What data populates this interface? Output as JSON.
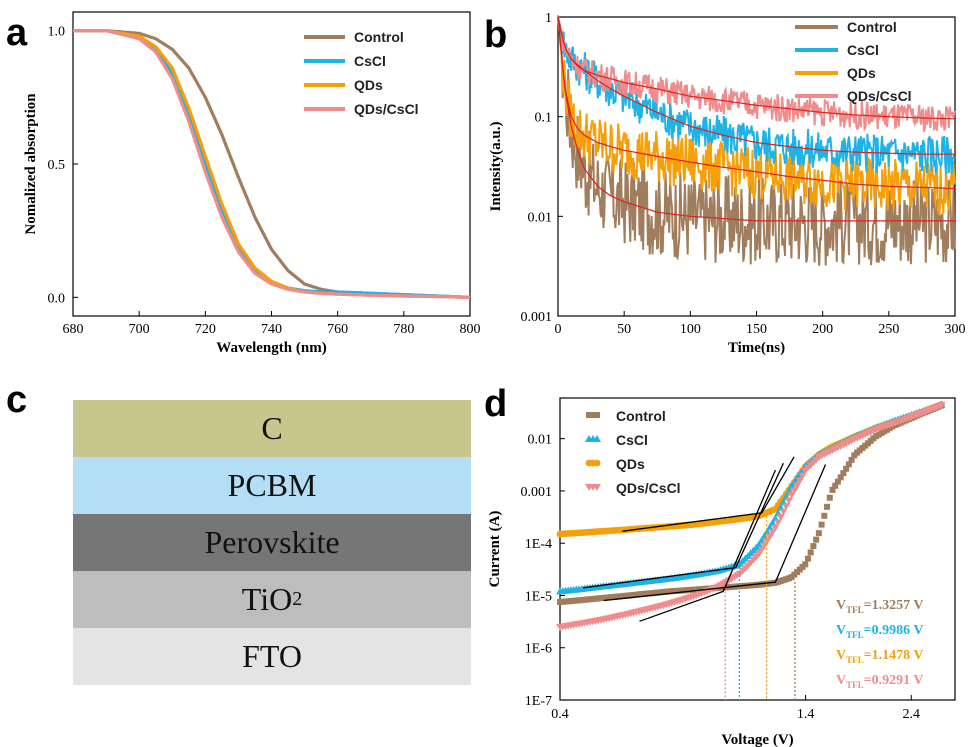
{
  "panel_labels": {
    "a": "a",
    "b": "b",
    "c": "c",
    "d": "d"
  },
  "colors": {
    "Control": "#a07d5c",
    "CsCl": "#1eb3e6",
    "QDs": "#f5a00a",
    "QDs/CsCl": "#f08c8c",
    "fit": "#e02020"
  },
  "chart_data": [
    {
      "panel": "a",
      "type": "line",
      "xlabel": "Wavelength (nm)",
      "ylabel": "Nomalized absorption",
      "xlim": [
        680,
        800
      ],
      "ylim": [
        -0.07,
        1.07
      ],
      "xticks": [
        "680",
        "700",
        "720",
        "740",
        "760",
        "780",
        "800"
      ],
      "yticks": [
        "0.0",
        "0.5",
        "1.0"
      ],
      "legend_position": "top-right",
      "x": [
        680,
        690,
        700,
        705,
        710,
        715,
        720,
        725,
        730,
        735,
        740,
        745,
        750,
        755,
        760,
        770,
        780,
        790,
        800
      ],
      "series": [
        {
          "name": "Control",
          "values": [
            1.0,
            1.0,
            0.99,
            0.97,
            0.93,
            0.86,
            0.75,
            0.61,
            0.45,
            0.3,
            0.18,
            0.1,
            0.05,
            0.03,
            0.02,
            0.015,
            0.01,
            0.005,
            0.0
          ]
        },
        {
          "name": "CsCl",
          "values": [
            1.0,
            1.0,
            0.98,
            0.93,
            0.84,
            0.68,
            0.5,
            0.33,
            0.19,
            0.1,
            0.055,
            0.035,
            0.025,
            0.02,
            0.02,
            0.015,
            0.01,
            0.005,
            0.0
          ]
        },
        {
          "name": "QDs",
          "values": [
            1.0,
            1.0,
            0.98,
            0.94,
            0.86,
            0.71,
            0.53,
            0.35,
            0.2,
            0.11,
            0.06,
            0.035,
            0.02,
            0.015,
            0.012,
            0.008,
            0.005,
            0.003,
            0.0
          ]
        },
        {
          "name": "QDs/CsCl",
          "values": [
            1.0,
            1.0,
            0.97,
            0.92,
            0.82,
            0.66,
            0.47,
            0.3,
            0.17,
            0.09,
            0.05,
            0.03,
            0.02,
            0.015,
            0.012,
            0.008,
            0.005,
            0.003,
            0.0
          ]
        }
      ]
    },
    {
      "panel": "b",
      "type": "line",
      "xlabel": "Time(ns)",
      "ylabel": "Intensity(a.u.)",
      "xlim": [
        0,
        300
      ],
      "ylim": [
        0.001,
        1
      ],
      "yscale": "log",
      "xticks": [
        "0",
        "50",
        "100",
        "150",
        "200",
        "250",
        "300"
      ],
      "yticks": [
        "0.001",
        "0.01",
        "0.1",
        "1"
      ],
      "legend_position": "top-right",
      "x": [
        0,
        5,
        10,
        15,
        20,
        30,
        40,
        50,
        75,
        100,
        125,
        150,
        175,
        200,
        225,
        250,
        275,
        300
      ],
      "series": [
        {
          "name": "Control",
          "values": [
            1.0,
            0.2,
            0.08,
            0.045,
            0.03,
            0.02,
            0.016,
            0.014,
            0.011,
            0.01,
            0.0095,
            0.009,
            0.009,
            0.009,
            0.009,
            0.009,
            0.009,
            0.009
          ]
        },
        {
          "name": "CsCl",
          "values": [
            1.0,
            0.5,
            0.38,
            0.33,
            0.29,
            0.23,
            0.19,
            0.16,
            0.11,
            0.08,
            0.065,
            0.055,
            0.05,
            0.046,
            0.044,
            0.043,
            0.042,
            0.042
          ]
        },
        {
          "name": "QDs",
          "values": [
            1.0,
            0.2,
            0.1,
            0.075,
            0.065,
            0.055,
            0.05,
            0.046,
            0.04,
            0.035,
            0.031,
            0.028,
            0.025,
            0.023,
            0.021,
            0.02,
            0.0195,
            0.019
          ]
        },
        {
          "name": "QDs/CsCl",
          "values": [
            1.0,
            0.5,
            0.38,
            0.32,
            0.29,
            0.26,
            0.24,
            0.22,
            0.19,
            0.16,
            0.145,
            0.13,
            0.12,
            0.11,
            0.104,
            0.1,
            0.097,
            0.095
          ]
        }
      ]
    },
    {
      "panel": "d",
      "type": "scatter",
      "xlabel": "Voltage (V)",
      "ylabel": "Current (A)",
      "xlim": [
        0.4,
        3.0
      ],
      "ylim": [
        1e-07,
        0.06
      ],
      "xscale": "log",
      "yscale": "log",
      "xticks": [
        "0.4",
        "1.4",
        "2.4"
      ],
      "yticks": [
        "1E-7",
        "1E-6",
        "1E-5",
        "1E-4",
        "0.001",
        "0.01"
      ],
      "legend_position": "top-left",
      "x": [
        0.4,
        0.5,
        0.6,
        0.7,
        0.8,
        0.9,
        1.0,
        1.1,
        1.2,
        1.3,
        1.4,
        1.5,
        1.6,
        1.8,
        2.0,
        2.2,
        2.5,
        2.8
      ],
      "series": [
        {
          "name": "Control",
          "values": [
            7.5e-06,
            9e-06,
            1.05e-05,
            1.2e-05,
            1.3e-05,
            1.4e-05,
            1.5e-05,
            1.6e-05,
            1.75e-05,
            2.2e-05,
            4e-05,
            0.00016,
            0.001,
            0.005,
            0.011,
            0.018,
            0.029,
            0.043
          ]
        },
        {
          "name": "CsCl",
          "values": [
            1.2e-05,
            1.5e-05,
            1.8e-05,
            2.1e-05,
            2.5e-05,
            3e-05,
            4e-05,
            9e-05,
            0.0003,
            0.0012,
            0.003,
            0.005,
            0.0065,
            0.011,
            0.016,
            0.022,
            0.032,
            0.045
          ]
        },
        {
          "name": "QDs",
          "values": [
            0.00015,
            0.00017,
            0.00019,
            0.00021,
            0.00023,
            0.00026,
            0.00029,
            0.00033,
            0.00045,
            0.0012,
            0.003,
            0.005,
            0.007,
            0.011,
            0.016,
            0.021,
            0.031,
            0.045
          ]
        },
        {
          "name": "QDs/CsCl",
          "values": [
            2.5e-06,
            3.5e-06,
            5e-06,
            7e-06,
            1e-05,
            1.5e-05,
            2.6e-05,
            6e-05,
            0.0002,
            0.0008,
            0.0025,
            0.0045,
            0.006,
            0.01,
            0.015,
            0.02,
            0.03,
            0.044
          ]
        }
      ],
      "vtfl": [
        {
          "name": "Control",
          "value": "=1.3257 V",
          "v": 1.3257
        },
        {
          "name": "CsCl",
          "value": "=0.9986 V",
          "v": 0.9986
        },
        {
          "name": "QDs",
          "value": "=1.1478 V",
          "v": 1.1478
        },
        {
          "name": "QDs/CsCl",
          "value": "=0.9291 V",
          "v": 0.9291
        }
      ],
      "vtfl_label": {
        "v": "V",
        "sub": "TFL"
      }
    }
  ],
  "stack": {
    "layers": [
      {
        "label": "C",
        "color": "#c8c68c"
      },
      {
        "label": "PCBM",
        "color": "#b3def6"
      },
      {
        "label": "Perovskite",
        "color": "#767676"
      },
      {
        "label": "TiO",
        "sub": "2",
        "color": "#bdbdbd"
      },
      {
        "label": "FTO",
        "color": "#e4e4e4"
      }
    ]
  }
}
